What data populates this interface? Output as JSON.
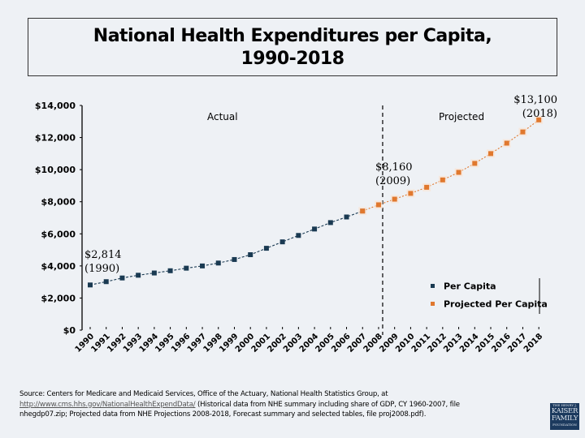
{
  "chart_data": {
    "type": "line",
    "title": "National Health Expenditures per Capita, 1990-2018",
    "title_lines": [
      "National Health Expenditures per Capita,",
      "1990-2018"
    ],
    "xlabel": "",
    "ylabel": "",
    "ylim": [
      0,
      14000
    ],
    "y_ticks": [
      0,
      2000,
      4000,
      6000,
      8000,
      10000,
      12000,
      14000
    ],
    "y_tick_labels": [
      "$0",
      "$2,000",
      "$4,000",
      "$6,000",
      "$8,000",
      "$10,000",
      "$12,000",
      "$14,000"
    ],
    "categories": [
      "1990",
      "1991",
      "1992",
      "1993",
      "1994",
      "1995",
      "1996",
      "1997",
      "1998",
      "1999",
      "2000",
      "2001",
      "2002",
      "2003",
      "2004",
      "2005",
      "2006",
      "2007",
      "2008",
      "2009",
      "2010",
      "2011",
      "2012",
      "2013",
      "2014",
      "2015",
      "2016",
      "2017",
      "2018"
    ],
    "grid": false,
    "series": [
      {
        "name": "Per Capita",
        "color": "#1a3a52",
        "x": [
          "1990",
          "1991",
          "1992",
          "1993",
          "1994",
          "1995",
          "1996",
          "1997",
          "1998",
          "1999",
          "2000",
          "2001",
          "2002",
          "2003",
          "2004",
          "2005",
          "2006",
          "2007"
        ],
        "values": [
          2814,
          3020,
          3250,
          3420,
          3560,
          3700,
          3860,
          4000,
          4180,
          4400,
          4700,
          5100,
          5500,
          5900,
          6300,
          6700,
          7050,
          7420
        ]
      },
      {
        "name": "Projected Per Capita",
        "color": "#e0782e",
        "x": [
          "2007",
          "2008",
          "2009",
          "2010",
          "2011",
          "2012",
          "2013",
          "2014",
          "2015",
          "2016",
          "2017",
          "2018"
        ],
        "values": [
          7420,
          7810,
          8160,
          8520,
          8900,
          9360,
          9830,
          10390,
          11000,
          11650,
          12350,
          13100
        ]
      }
    ],
    "divider": {
      "after_category": "2008",
      "style": "dashed"
    },
    "region_labels": {
      "left": "Actual",
      "right": "Projected"
    },
    "annotations": [
      {
        "category": "1990",
        "lines": [
          "$2,814",
          "(1990)"
        ]
      },
      {
        "category": "2009",
        "lines": [
          "$8,160",
          "(2009)"
        ]
      },
      {
        "category": "2018",
        "lines": [
          "$13,100",
          "(2018)"
        ]
      }
    ],
    "legend": {
      "position": "right-bottom",
      "entries": [
        {
          "label": "Per Capita",
          "color": "#1a3a52"
        },
        {
          "label": "Projected Per Capita",
          "color": "#e0782e"
        }
      ]
    }
  },
  "footer": {
    "source_prefix": "Source: Centers for Medicare and Medicaid Services, Office of the Actuary, National Health Statistics Group, at",
    "source_link": "http://www.cms.hhs.gov/NationalHealthExpendData/",
    "source_suffix": " (Historical data from NHE summary including share of GDP, CY 1960-2007, file nhegdp07.zip; Projected data from NHE Projections 2008-2018, Forecast summary and selected tables, file proj2008.pdf)."
  },
  "logo": {
    "top": "THE HENRY J.",
    "line1": "KAISER",
    "line2": "FAMILY",
    "bottom": "FOUNDATION"
  }
}
